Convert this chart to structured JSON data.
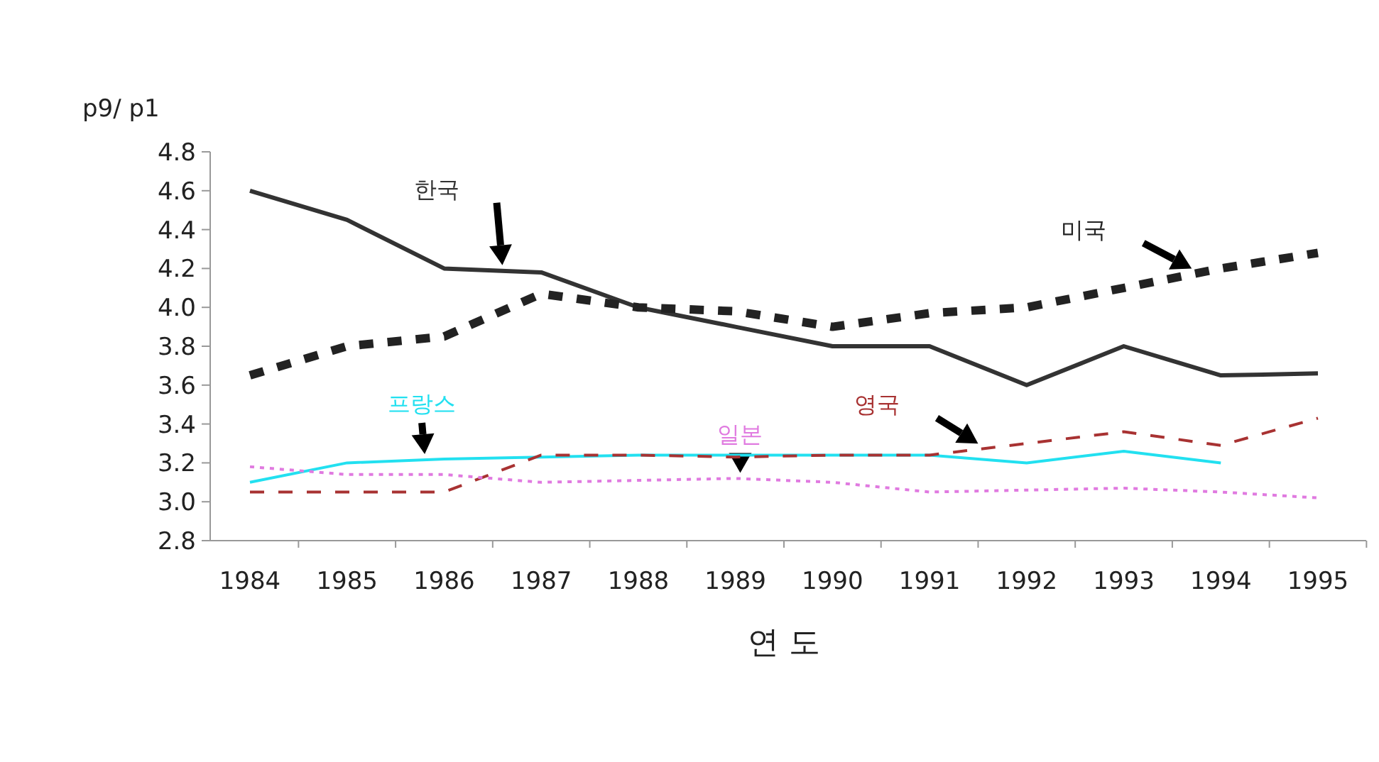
{
  "chart_data": {
    "type": "line",
    "ylabel": "p9/ p1",
    "xlabel": "연 도",
    "categories": [
      "1984",
      "1985",
      "1986",
      "1987",
      "1988",
      "1989",
      "1990",
      "1991",
      "1992",
      "1993",
      "1994",
      "1995"
    ],
    "ylim": [
      2.8,
      4.8
    ],
    "yticks": [
      {
        "value": 2.8,
        "label": "2.8"
      },
      {
        "value": 3.0,
        "label": "3.0"
      },
      {
        "value": 3.2,
        "label": "3.2"
      },
      {
        "value": 3.4,
        "label": "3.4"
      },
      {
        "value": 3.6,
        "label": "3.6"
      },
      {
        "value": 3.8,
        "label": "3.8"
      },
      {
        "value": 4.0,
        "label": "4.0"
      },
      {
        "value": 4.2,
        "label": "4.2"
      },
      {
        "value": 4.4,
        "label": "4.4"
      },
      {
        "value": 4.6,
        "label": "4.6"
      },
      {
        "value": 4.8,
        "label": "4.8"
      }
    ],
    "grid": false,
    "series": [
      {
        "name": "한국",
        "color": "#333333",
        "line_style": "solid",
        "values": [
          4.6,
          4.45,
          4.2,
          4.18,
          4.0,
          3.9,
          3.8,
          3.8,
          3.6,
          3.8,
          3.65,
          3.66
        ]
      },
      {
        "name": "미국",
        "color": "#222222",
        "line_style": "dashed",
        "values": [
          3.65,
          3.8,
          3.85,
          4.07,
          4.0,
          3.98,
          3.9,
          3.97,
          4.0,
          4.1,
          4.2,
          4.28
        ]
      },
      {
        "name": "프랑스",
        "color": "#22e0f0",
        "line_style": "solid",
        "values": [
          3.1,
          3.2,
          3.22,
          3.23,
          3.24,
          3.24,
          3.24,
          3.24,
          3.2,
          3.26,
          3.2,
          null
        ]
      },
      {
        "name": "영국",
        "color": "#a83232",
        "line_style": "dashed",
        "values": [
          3.05,
          3.05,
          3.05,
          3.24,
          3.24,
          3.23,
          3.24,
          3.24,
          3.3,
          3.36,
          3.29,
          3.43
        ]
      },
      {
        "name": "일본",
        "color": "#e07ae0",
        "line_style": "dotted",
        "values": [
          3.18,
          3.14,
          3.14,
          3.1,
          3.11,
          3.12,
          3.1,
          3.05,
          3.06,
          3.07,
          3.05,
          3.02
        ]
      }
    ]
  }
}
